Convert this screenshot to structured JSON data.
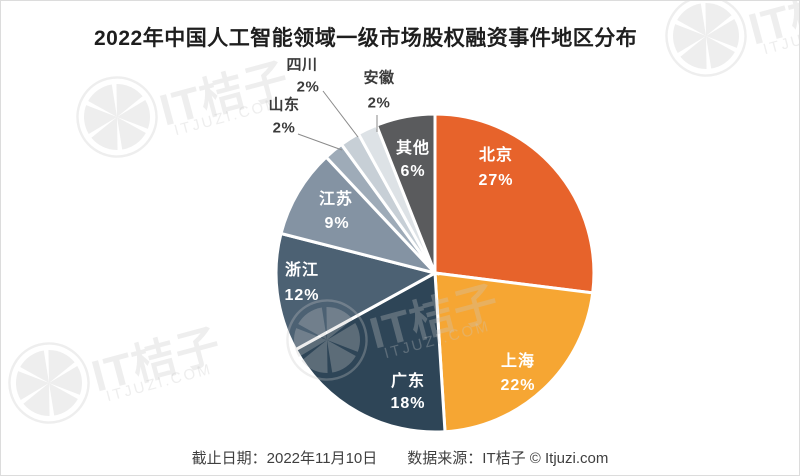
{
  "title": "2022年中国人工智能领域一级市场股权融资事件地区分布",
  "watermark": {
    "brand": "IT桔子",
    "domain": "ITJUZI.COM"
  },
  "footer": {
    "date": "截止日期：2022年11月10日",
    "source": "数据来源：IT桔子 © Itjuzi.com"
  },
  "chart_data": {
    "type": "pie",
    "title": "2022年中国人工智能领域一级市场股权融资事件地区分布",
    "value_unit": "%",
    "start_angle_deg": 0,
    "direction": "clockwise",
    "legend_position": "none",
    "slices": [
      {
        "name": "北京",
        "slug": "beijing",
        "value": 27,
        "color": "#E7632B",
        "label_style": "inside-white"
      },
      {
        "name": "上海",
        "slug": "shanghai",
        "value": 22,
        "color": "#F6A633",
        "label_style": "inside-white"
      },
      {
        "name": "广东",
        "slug": "guangdong",
        "value": 18,
        "color": "#2E4557",
        "label_style": "inside-white"
      },
      {
        "name": "浙江",
        "slug": "zhejiang",
        "value": 12,
        "color": "#4C6173",
        "label_style": "inside-white"
      },
      {
        "name": "江苏",
        "slug": "jiangsu",
        "value": 9,
        "color": "#8493A3",
        "label_style": "inside-white"
      },
      {
        "name": "山东",
        "slug": "shandong",
        "value": 2,
        "color": "#9EABB8",
        "label_style": "outside-line"
      },
      {
        "name": "四川",
        "slug": "sichuan",
        "value": 2,
        "color": "#C7CFD6",
        "label_style": "outside-line"
      },
      {
        "name": "安徽",
        "slug": "anhui",
        "value": 2,
        "color": "#DDE2E6",
        "label_style": "outside-line"
      },
      {
        "name": "其他",
        "slug": "other",
        "value": 6,
        "color": "#5A5B5D",
        "label_style": "inside-white"
      }
    ]
  }
}
